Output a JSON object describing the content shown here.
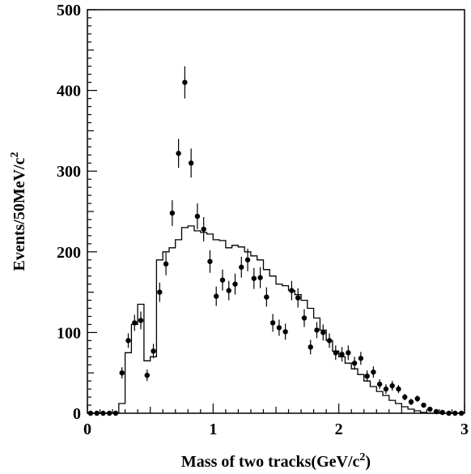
{
  "chart_data": {
    "type": "scatter",
    "title": "",
    "xlabel": "Mass of two tracks(GeV/c",
    "xlabel_sup": "2",
    "xlabel_end": ")",
    "ylabel": "Events/50MeV/c",
    "ylabel_sup": "2",
    "xlim": [
      0,
      3
    ],
    "ylim": [
      0,
      500
    ],
    "x_ticks": [
      0,
      1,
      2,
      3
    ],
    "x_tick_labels": [
      "0",
      "1",
      "2",
      "3"
    ],
    "y_ticks": [
      0,
      100,
      200,
      300,
      400,
      500
    ],
    "y_tick_labels": [
      "0",
      "100",
      "200",
      "300",
      "400",
      "500"
    ],
    "grid": false,
    "legend": "none",
    "series": [
      {
        "kind": "points_with_error_bars",
        "x": [
          0.025,
          0.075,
          0.125,
          0.175,
          0.225,
          0.275,
          0.325,
          0.375,
          0.425,
          0.475,
          0.525,
          0.575,
          0.625,
          0.675,
          0.725,
          0.775,
          0.825,
          0.875,
          0.925,
          0.975,
          1.025,
          1.075,
          1.125,
          1.175,
          1.225,
          1.275,
          1.325,
          1.375,
          1.425,
          1.475,
          1.525,
          1.575,
          1.625,
          1.675,
          1.725,
          1.775,
          1.825,
          1.875,
          1.925,
          1.975,
          2.025,
          2.075,
          2.125,
          2.175,
          2.225,
          2.275,
          2.325,
          2.375,
          2.425,
          2.475,
          2.525,
          2.575,
          2.625,
          2.675,
          2.725,
          2.775,
          2.825,
          2.875,
          2.925,
          2.975
        ],
        "y": [
          0,
          0,
          0,
          0,
          0,
          50,
          90,
          112,
          115,
          47,
          77,
          150,
          185,
          248,
          322,
          410,
          310,
          244,
          228,
          188,
          145,
          165,
          152,
          160,
          181,
          190,
          167,
          168,
          144,
          112,
          106,
          101,
          152,
          143,
          118,
          82,
          103,
          100,
          90,
          75,
          73,
          75,
          62,
          68,
          46,
          51,
          36,
          30,
          34,
          30,
          20,
          14,
          18,
          10,
          5,
          2,
          1,
          0,
          0,
          0
        ],
        "err": [
          0,
          0,
          0,
          0,
          0,
          7,
          9,
          10,
          11,
          7,
          9,
          12,
          14,
          16,
          18,
          20,
          18,
          16,
          15,
          14,
          12,
          13,
          12,
          13,
          13,
          14,
          13,
          13,
          12,
          11,
          10,
          10,
          12,
          12,
          11,
          9,
          10,
          10,
          9,
          9,
          9,
          9,
          8,
          8,
          7,
          7,
          6,
          6,
          6,
          5,
          4,
          4,
          4,
          3,
          2,
          1,
          1,
          0,
          0,
          0
        ]
      },
      {
        "kind": "histogram",
        "bin_width": 0.05,
        "x_start": 0,
        "values": [
          0,
          0,
          0,
          0,
          0,
          12,
          75,
          110,
          135,
          65,
          70,
          190,
          200,
          205,
          215,
          230,
          232,
          226,
          224,
          222,
          215,
          214,
          205,
          208,
          206,
          200,
          195,
          190,
          178,
          170,
          160,
          158,
          152,
          147,
          140,
          130,
          118,
          103,
          90,
          77,
          70,
          62,
          55,
          48,
          40,
          33,
          27,
          22,
          16,
          12,
          8,
          5,
          3,
          1,
          0,
          0,
          0,
          0,
          0,
          0
        ]
      }
    ]
  }
}
